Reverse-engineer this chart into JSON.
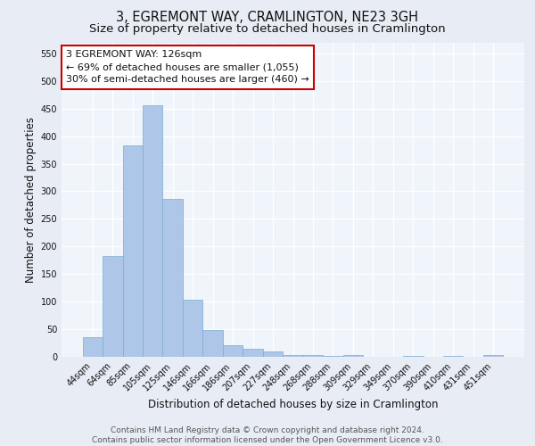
{
  "title": "3, EGREMONT WAY, CRAMLINGTON, NE23 3GH",
  "subtitle": "Size of property relative to detached houses in Cramlington",
  "xlabel": "Distribution of detached houses by size in Cramlington",
  "ylabel": "Number of detached properties",
  "categories": [
    "44sqm",
    "64sqm",
    "85sqm",
    "105sqm",
    "125sqm",
    "146sqm",
    "166sqm",
    "186sqm",
    "207sqm",
    "227sqm",
    "248sqm",
    "268sqm",
    "288sqm",
    "309sqm",
    "329sqm",
    "349sqm",
    "370sqm",
    "390sqm",
    "410sqm",
    "431sqm",
    "451sqm"
  ],
  "values": [
    35,
    183,
    383,
    456,
    287,
    103,
    49,
    21,
    15,
    9,
    3,
    4,
    1,
    4,
    0,
    0,
    2,
    0,
    2,
    0,
    3
  ],
  "bar_color": "#aec6e8",
  "bar_edge_color": "#7aacd4",
  "highlight_bar_index": 4,
  "annotation_text": "3 EGREMONT WAY: 126sqm\n← 69% of detached houses are smaller (1,055)\n30% of semi-detached houses are larger (460) →",
  "annotation_box_color": "#ffffff",
  "annotation_box_edge_color": "#cc0000",
  "ylim": [
    0,
    570
  ],
  "yticks": [
    0,
    50,
    100,
    150,
    200,
    250,
    300,
    350,
    400,
    450,
    500,
    550
  ],
  "bg_color": "#e8edf5",
  "plot_bg_color": "#f0f4fb",
  "grid_color": "#ffffff",
  "footer": "Contains HM Land Registry data © Crown copyright and database right 2024.\nContains public sector information licensed under the Open Government Licence v3.0.",
  "title_fontsize": 10.5,
  "subtitle_fontsize": 9.5,
  "xlabel_fontsize": 8.5,
  "ylabel_fontsize": 8.5,
  "tick_fontsize": 7,
  "annotation_fontsize": 8,
  "footer_fontsize": 6.5
}
